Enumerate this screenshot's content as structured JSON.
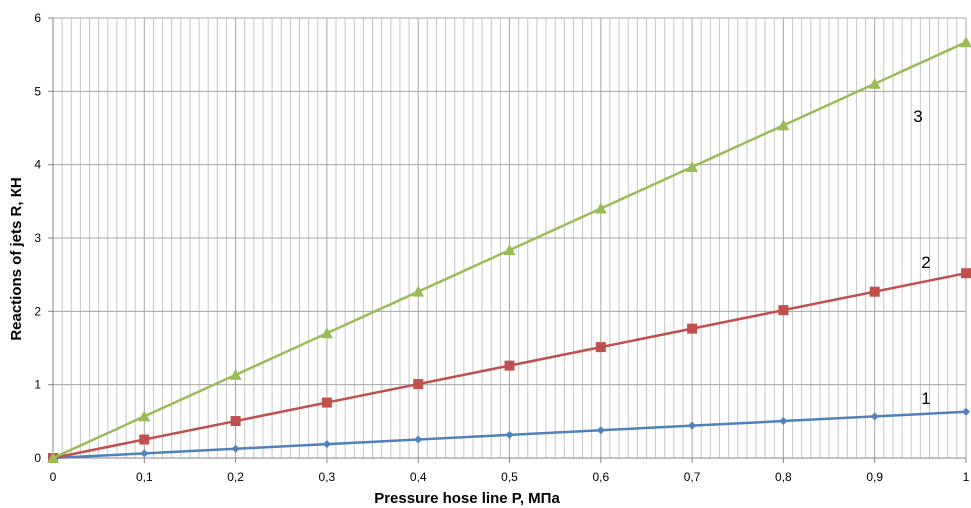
{
  "chart_data": {
    "type": "line",
    "title": "",
    "xlabel": "Pressure hose line  P, МПа",
    "ylabel": "Reactions of jets  R, КН",
    "xlim": [
      0,
      1
    ],
    "ylim": [
      0,
      6
    ],
    "x": [
      0,
      0.1,
      0.2,
      0.3,
      0.4,
      0.5,
      0.6,
      0.7,
      0.8,
      0.9,
      1
    ],
    "x_tick_labels": [
      "0",
      "0,1",
      "0,2",
      "0,3",
      "0,4",
      "0,5",
      "0,6",
      "0,7",
      "0,8",
      "0,9",
      "1"
    ],
    "y_ticks": [
      0,
      1,
      2,
      3,
      4,
      5,
      6
    ],
    "y_tick_labels": [
      "0",
      "1",
      "2",
      "3",
      "4",
      "5",
      "6"
    ],
    "grid": "on",
    "series": [
      {
        "label": "1",
        "color": "#4f81bd",
        "marker": "diamond",
        "values": [
          0,
          0.063,
          0.126,
          0.189,
          0.252,
          0.315,
          0.378,
          0.441,
          0.504,
          0.567,
          0.63
        ]
      },
      {
        "label": "2",
        "color": "#c0504d",
        "marker": "square",
        "values": [
          0,
          0.252,
          0.504,
          0.756,
          1.008,
          1.26,
          1.512,
          1.764,
          2.016,
          2.268,
          2.52
        ]
      },
      {
        "label": "3",
        "color": "#9bbb59",
        "marker": "triangle",
        "values": [
          0,
          0.567,
          1.134,
          1.701,
          2.268,
          2.835,
          3.402,
          3.969,
          4.536,
          5.103,
          5.67
        ]
      }
    ]
  }
}
